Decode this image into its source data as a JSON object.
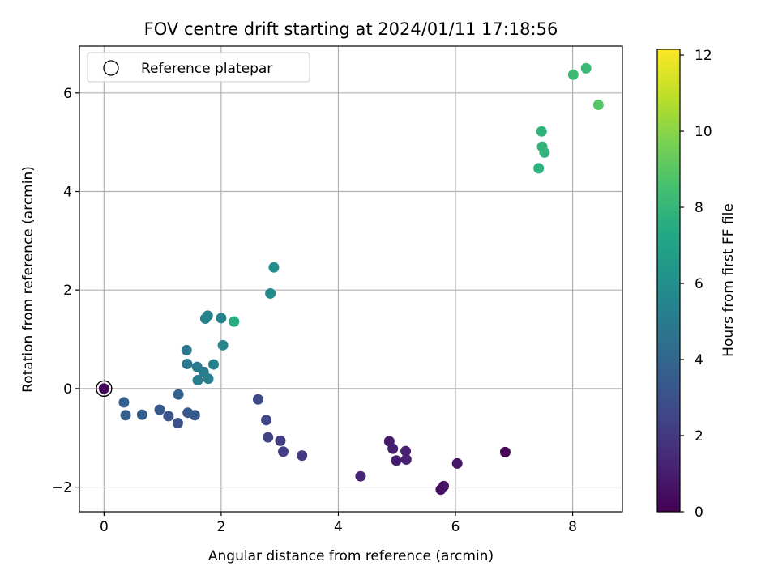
{
  "chart_data": {
    "type": "scatter",
    "title": "FOV centre drift starting at 2024/01/11 17:18:56",
    "xlabel": "Angular distance from reference (arcmin)",
    "ylabel": "Rotation from reference (arcmin)",
    "xlim": [
      -0.42,
      8.85
    ],
    "ylim": [
      -2.5,
      6.95
    ],
    "xticks": [
      0,
      2,
      4,
      6,
      8
    ],
    "xtick_labels": [
      "0",
      "2",
      "4",
      "6",
      "8"
    ],
    "yticks": [
      -2,
      0,
      2,
      4,
      6
    ],
    "ytick_labels": [
      "−2",
      "0",
      "2",
      "4",
      "6"
    ],
    "grid": true,
    "legend": {
      "placement": "top-left",
      "entries": [
        "Reference platepar"
      ]
    },
    "colorbar": {
      "label": "Hours from first FF file",
      "range": [
        0,
        12.15
      ],
      "ticks": [
        0,
        2,
        4,
        6,
        8,
        10,
        12
      ],
      "tick_labels": [
        "0",
        "2",
        "4",
        "6",
        "8",
        "10",
        "12"
      ],
      "colormap": "viridis"
    },
    "reference_point": {
      "x": 0,
      "y": 0
    },
    "points": [
      {
        "x": 0.0,
        "y": 0.0,
        "h": 0.1
      },
      {
        "x": 6.85,
        "y": -1.29,
        "h": 0.2
      },
      {
        "x": 5.75,
        "y": -2.05,
        "h": 0.5
      },
      {
        "x": 5.8,
        "y": -1.98,
        "h": 0.6
      },
      {
        "x": 6.03,
        "y": -1.52,
        "h": 0.7
      },
      {
        "x": 4.87,
        "y": -1.07,
        "h": 0.9
      },
      {
        "x": 4.93,
        "y": -1.22,
        "h": 1.0
      },
      {
        "x": 4.99,
        "y": -1.46,
        "h": 1.0
      },
      {
        "x": 5.15,
        "y": -1.27,
        "h": 1.1
      },
      {
        "x": 5.16,
        "y": -1.44,
        "h": 1.1
      },
      {
        "x": 4.38,
        "y": -1.78,
        "h": 1.3
      },
      {
        "x": 3.38,
        "y": -1.36,
        "h": 2.0
      },
      {
        "x": 3.01,
        "y": -1.06,
        "h": 2.2
      },
      {
        "x": 3.06,
        "y": -1.28,
        "h": 2.2
      },
      {
        "x": 2.8,
        "y": -0.99,
        "h": 2.4
      },
      {
        "x": 2.77,
        "y": -0.64,
        "h": 2.5
      },
      {
        "x": 2.63,
        "y": -0.22,
        "h": 2.7
      },
      {
        "x": 1.26,
        "y": -0.7,
        "h": 3.0
      },
      {
        "x": 1.1,
        "y": -0.56,
        "h": 3.1
      },
      {
        "x": 0.95,
        "y": -0.43,
        "h": 3.3
      },
      {
        "x": 1.43,
        "y": -0.49,
        "h": 3.3
      },
      {
        "x": 1.55,
        "y": -0.54,
        "h": 3.4
      },
      {
        "x": 0.65,
        "y": -0.53,
        "h": 3.6
      },
      {
        "x": 0.37,
        "y": -0.54,
        "h": 3.7
      },
      {
        "x": 0.34,
        "y": -0.28,
        "h": 3.7
      },
      {
        "x": 1.27,
        "y": -0.12,
        "h": 3.9
      },
      {
        "x": 1.41,
        "y": 0.78,
        "h": 4.9
      },
      {
        "x": 1.42,
        "y": 0.5,
        "h": 4.9
      },
      {
        "x": 1.59,
        "y": 0.44,
        "h": 5.0
      },
      {
        "x": 1.6,
        "y": 0.17,
        "h": 5.1
      },
      {
        "x": 1.7,
        "y": 0.34,
        "h": 5.1
      },
      {
        "x": 1.78,
        "y": 0.2,
        "h": 5.2
      },
      {
        "x": 1.87,
        "y": 0.49,
        "h": 5.3
      },
      {
        "x": 1.73,
        "y": 1.42,
        "h": 5.4
      },
      {
        "x": 1.77,
        "y": 1.48,
        "h": 5.4
      },
      {
        "x": 2.0,
        "y": 1.43,
        "h": 5.5
      },
      {
        "x": 2.03,
        "y": 0.88,
        "h": 5.6
      },
      {
        "x": 2.84,
        "y": 1.93,
        "h": 5.8
      },
      {
        "x": 2.9,
        "y": 2.46,
        "h": 5.9
      },
      {
        "x": 2.22,
        "y": 1.36,
        "h": 7.5
      },
      {
        "x": 7.42,
        "y": 4.47,
        "h": 7.8
      },
      {
        "x": 7.47,
        "y": 5.22,
        "h": 7.8
      },
      {
        "x": 7.48,
        "y": 4.91,
        "h": 7.9
      },
      {
        "x": 7.52,
        "y": 4.79,
        "h": 7.9
      },
      {
        "x": 8.01,
        "y": 6.37,
        "h": 8.3
      },
      {
        "x": 8.23,
        "y": 6.5,
        "h": 8.2
      },
      {
        "x": 8.44,
        "y": 5.76,
        "h": 8.9
      }
    ]
  }
}
